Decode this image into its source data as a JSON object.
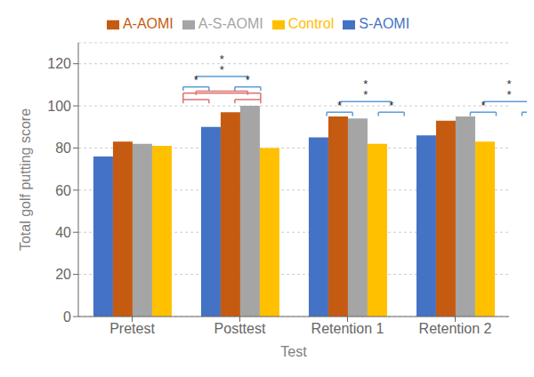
{
  "chart_data": {
    "type": "bar",
    "categories": [
      "Pretest",
      "Posttest",
      "Retention 1",
      "Retention 2"
    ],
    "series": [
      {
        "name": "S-AOMI",
        "color": "#4472C4",
        "values": [
          76,
          90,
          85,
          86
        ]
      },
      {
        "name": "A-AOMI",
        "color": "#C55A11",
        "values": [
          83,
          97,
          95,
          93
        ]
      },
      {
        "name": "A-S-AOMI",
        "color": "#A5A5A5",
        "values": [
          82,
          100,
          94,
          95
        ]
      },
      {
        "name": "Control",
        "color": "#FFC000",
        "values": [
          81,
          80,
          82,
          83
        ]
      }
    ],
    "xlabel": "Test",
    "ylabel": "Total golf putting score",
    "ylim": [
      0,
      130
    ],
    "yticks": [
      0,
      20,
      40,
      60,
      80,
      100,
      120
    ],
    "grid": true,
    "legend": "top",
    "annotations": [
      {
        "type": "tree_bracket",
        "category": "Posttest",
        "color": "#E07070",
        "y": [
          103,
          107
        ]
      },
      {
        "type": "bracket",
        "category": "Posttest",
        "color": "#E07070",
        "y": [
          103,
          106
        ]
      },
      {
        "type": "tree_bracket",
        "category": "Posttest",
        "color": "#5B9BD5",
        "y": [
          109,
          114,
          120
        ],
        "text": "*"
      },
      {
        "type": "tree_bracket",
        "category": "Retention 1",
        "color": "#5B9BD5",
        "y": [
          97,
          102,
          108
        ],
        "text": "*"
      },
      {
        "type": "tree_bracket",
        "category": "Retention 2",
        "color": "#5B9BD5",
        "y": [
          97,
          102,
          108
        ],
        "text": "*"
      }
    ]
  }
}
